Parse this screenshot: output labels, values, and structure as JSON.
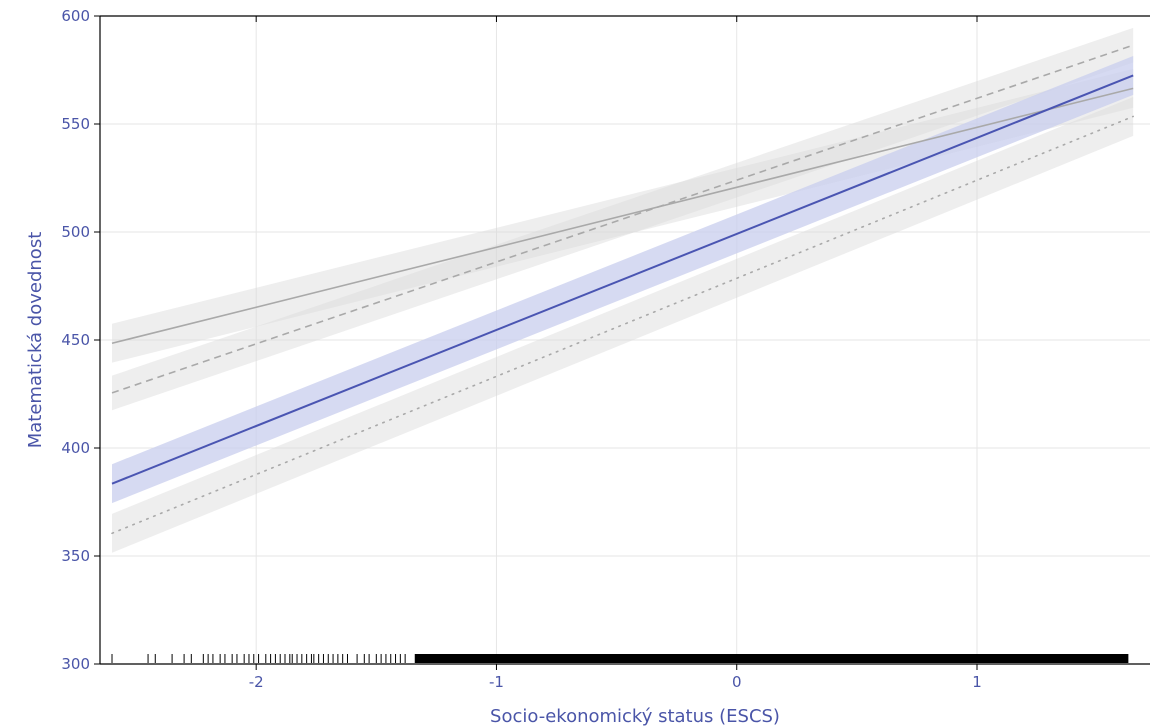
{
  "chart_data": {
    "type": "line",
    "title": "",
    "xlabel": "Socio-ekonomický status (ESCS)",
    "ylabel": "Matematická dovednost",
    "xlim": [
      -2.65,
      1.72
    ],
    "ylim": [
      300,
      600
    ],
    "x_ticks": [
      -2,
      -1,
      0,
      1
    ],
    "x_tick_labels": [
      "-2",
      "-1",
      "0",
      "1"
    ],
    "y_ticks": [
      300,
      350,
      400,
      450,
      500,
      550,
      600
    ],
    "y_tick_labels": [
      "300",
      "350",
      "400",
      "450",
      "500",
      "550",
      "600"
    ],
    "grid": true,
    "legend": "none",
    "x_range": [
      -2.6,
      1.65
    ],
    "series": [
      {
        "y": [
          448.5,
          566.5
        ],
        "ci_halfwidth": 9,
        "style": "solid",
        "color": "#a9a9a9",
        "band_color": "#d9d9d9"
      },
      {
        "y": [
          425.5,
          586.5
        ],
        "ci_halfwidth": 8,
        "style": "dashed",
        "color": "#a9a9a9",
        "band_color": "#d9d9d9"
      },
      {
        "y": [
          360.5,
          553.5
        ],
        "ci_halfwidth": 9,
        "style": "dotted",
        "color": "#a9a9a9",
        "band_color": "#d9d9d9"
      },
      {
        "y": [
          383.5,
          572.5
        ],
        "ci_halfwidth": 9,
        "style": "solid",
        "color": "#4a55b2",
        "band_color": "#c8cdee"
      }
    ],
    "rug_x": [
      -2.6,
      -2.45,
      -2.42,
      -2.35,
      -2.3,
      -2.27,
      -2.22,
      -2.2,
      -2.18,
      -2.15,
      -2.13,
      -2.1,
      -2.08,
      -2.05,
      -2.03,
      -2.01,
      -1.99,
      -1.96,
      -1.94,
      -1.92,
      -1.9,
      -1.88,
      -1.86,
      -1.85,
      -1.83,
      -1.81,
      -1.79,
      -1.77,
      -1.76,
      -1.74,
      -1.72,
      -1.7,
      -1.68,
      -1.66,
      -1.64,
      -1.62,
      -1.58,
      -1.55,
      -1.53,
      -1.5,
      -1.48,
      -1.46,
      -1.44,
      -1.42,
      -1.4,
      -1.38
    ],
    "rug_dense_range": [
      -1.34,
      1.63
    ]
  },
  "colors": {
    "accent": "#4a55b2",
    "label": "#4a55a8",
    "grid": "#e6e6e6"
  }
}
